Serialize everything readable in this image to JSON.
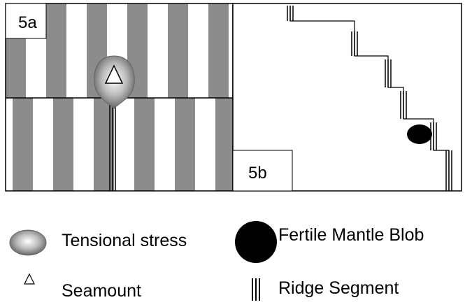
{
  "panels": {
    "a": {
      "label": "5a"
    },
    "b": {
      "label": "5b"
    }
  },
  "legend": {
    "tensional_stress": "Tensional stress",
    "fertile_mantle_blob": "Fertile Mantle Blob",
    "seamount": "Seamount",
    "ridge_segment": "Ridge Segment"
  }
}
